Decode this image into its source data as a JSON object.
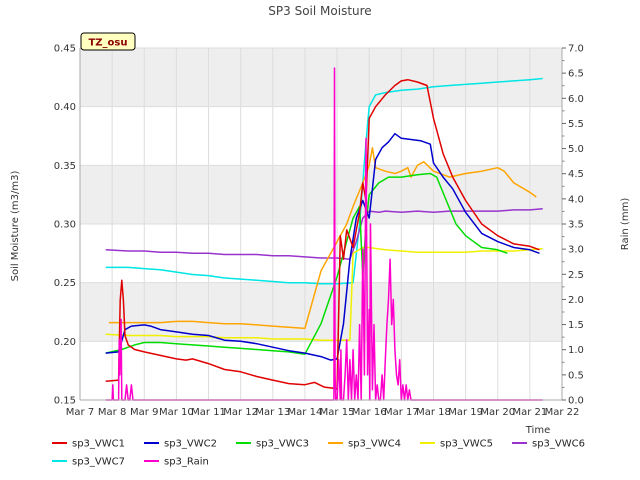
{
  "chart_data": {
    "type": "line",
    "title": "SP3 Soil Moisture",
    "annotation": "TZ_osu",
    "xlabel": "Time",
    "ylabel": "Soil Moisture (m3/m3)",
    "y2label": "Rain (mm)",
    "xlim": [
      7,
      22
    ],
    "ylim": [
      0.15,
      0.45
    ],
    "y2lim": [
      0,
      7
    ],
    "x_ticks": [
      7,
      8,
      9,
      10,
      11,
      12,
      13,
      14,
      15,
      16,
      17,
      18,
      19,
      20,
      21,
      22
    ],
    "x_tick_labels": [
      "Mar 7",
      "Mar 8",
      "Mar 9",
      "Mar 10",
      "Mar 11",
      "Mar 12",
      "Mar 13",
      "Mar 14",
      "Mar 15",
      "Mar 16",
      "Mar 17",
      "Mar 18",
      "Mar 19",
      "Mar 20",
      "Mar 21",
      "Mar 22"
    ],
    "y_ticks": [
      0.15,
      0.2,
      0.25,
      0.3,
      0.35,
      0.4,
      0.45
    ],
    "y_tick_labels": [
      "0.15",
      "0.20",
      "0.25",
      "0.30",
      "0.35",
      "0.40",
      "0.45"
    ],
    "y2_ticks": [
      0,
      0.5,
      1,
      1.5,
      2,
      2.5,
      3,
      3.5,
      4,
      4.5,
      5,
      5.5,
      6,
      6.5,
      7
    ],
    "y2_tick_labels": [
      "0.0",
      "0.5",
      "1.0",
      "1.5",
      "2.0",
      "2.5",
      "3.0",
      "3.5",
      "4.0",
      "4.5",
      "5.0",
      "5.5",
      "6.0",
      "6.5",
      "7.0"
    ],
    "grid": true,
    "legend_position": "bottom",
    "series": [
      {
        "name": "sp3_VWC1",
        "color": "#e00000",
        "axis": "left",
        "x": [
          7.8,
          8.2,
          8.25,
          8.3,
          8.35,
          8.4,
          8.5,
          8.7,
          9.0,
          9.5,
          10.0,
          10.3,
          10.5,
          11.0,
          11.5,
          12.0,
          12.5,
          13.0,
          13.5,
          14.0,
          14.3,
          14.6,
          14.9,
          15.0,
          15.1,
          15.2,
          15.3,
          15.5,
          15.7,
          15.8,
          15.9,
          16.0,
          16.2,
          16.5,
          16.8,
          17.0,
          17.2,
          17.5,
          17.8,
          18.0,
          18.3,
          18.6,
          19.0,
          19.5,
          20.0,
          20.5,
          21.0,
          21.3
        ],
        "y": [
          0.166,
          0.167,
          0.235,
          0.252,
          0.235,
          0.205,
          0.197,
          0.193,
          0.191,
          0.188,
          0.185,
          0.184,
          0.185,
          0.181,
          0.176,
          0.174,
          0.17,
          0.167,
          0.164,
          0.163,
          0.165,
          0.161,
          0.16,
          0.159,
          0.29,
          0.27,
          0.295,
          0.28,
          0.31,
          0.335,
          0.32,
          0.39,
          0.4,
          0.41,
          0.418,
          0.422,
          0.423,
          0.421,
          0.418,
          0.39,
          0.36,
          0.34,
          0.32,
          0.3,
          0.29,
          0.283,
          0.281,
          0.278
        ]
      },
      {
        "name": "sp3_VWC2",
        "color": "#0000cc",
        "axis": "left",
        "x": [
          7.8,
          8.2,
          8.4,
          8.6,
          9.0,
          9.2,
          9.5,
          10.0,
          10.5,
          11.0,
          11.5,
          12.0,
          12.5,
          13.0,
          13.5,
          14.0,
          14.5,
          14.8,
          15.0,
          15.2,
          15.4,
          15.6,
          15.8,
          16.0,
          16.2,
          16.4,
          16.6,
          16.8,
          17.0,
          17.3,
          17.6,
          17.9,
          18.0,
          18.3,
          18.6,
          19.0,
          19.5,
          20.0,
          20.5,
          21.0,
          21.3
        ],
        "y": [
          0.19,
          0.191,
          0.21,
          0.213,
          0.214,
          0.213,
          0.21,
          0.208,
          0.206,
          0.205,
          0.201,
          0.2,
          0.198,
          0.195,
          0.192,
          0.19,
          0.187,
          0.184,
          0.185,
          0.215,
          0.27,
          0.305,
          0.32,
          0.305,
          0.355,
          0.365,
          0.37,
          0.377,
          0.373,
          0.372,
          0.371,
          0.368,
          0.352,
          0.34,
          0.33,
          0.31,
          0.292,
          0.285,
          0.28,
          0.278,
          0.275
        ]
      },
      {
        "name": "sp3_VWC3",
        "color": "#00dd00",
        "axis": "left",
        "x": [
          7.8,
          8.3,
          8.7,
          9.0,
          9.5,
          10.0,
          10.5,
          11.0,
          11.5,
          12.0,
          12.5,
          13.0,
          13.5,
          14.0,
          14.5,
          15.0,
          15.3,
          15.5,
          15.7,
          15.8,
          15.9,
          16.0,
          16.3,
          16.6,
          17.0,
          17.5,
          17.9,
          18.1,
          18.4,
          18.7,
          19.0,
          19.5,
          20.0,
          20.3
        ],
        "y": [
          0.19,
          0.193,
          0.197,
          0.199,
          0.199,
          0.198,
          0.197,
          0.196,
          0.195,
          0.194,
          0.193,
          0.192,
          0.191,
          0.189,
          0.215,
          0.255,
          0.285,
          0.305,
          0.315,
          0.255,
          0.3,
          0.325,
          0.335,
          0.34,
          0.34,
          0.342,
          0.343,
          0.34,
          0.32,
          0.3,
          0.29,
          0.28,
          0.278,
          0.275
        ]
      },
      {
        "name": "sp3_VWC4",
        "color": "#ffa500",
        "axis": "left",
        "x": [
          7.9,
          8.3,
          8.7,
          9.0,
          9.5,
          10.0,
          10.5,
          11.0,
          11.5,
          12.0,
          12.5,
          13.0,
          13.5,
          14.0,
          14.5,
          15.0,
          15.3,
          15.5,
          15.8,
          16.0,
          16.1,
          16.2,
          16.5,
          16.8,
          17.0,
          17.2,
          17.3,
          17.5,
          17.7,
          18.0,
          18.5,
          19.0,
          19.5,
          20.0,
          20.2,
          20.5,
          21.0,
          21.2
        ],
        "y": [
          0.216,
          0.216,
          0.216,
          0.216,
          0.216,
          0.217,
          0.217,
          0.216,
          0.215,
          0.215,
          0.214,
          0.213,
          0.212,
          0.211,
          0.26,
          0.285,
          0.3,
          0.315,
          0.335,
          0.35,
          0.365,
          0.348,
          0.345,
          0.343,
          0.345,
          0.348,
          0.34,
          0.35,
          0.353,
          0.345,
          0.34,
          0.343,
          0.345,
          0.348,
          0.345,
          0.335,
          0.327,
          0.323
        ]
      },
      {
        "name": "sp3_VWC5",
        "color": "#f0f000",
        "axis": "left",
        "x": [
          7.8,
          8.5,
          9.0,
          9.5,
          10.0,
          10.5,
          11.0,
          11.5,
          12.0,
          12.5,
          13.0,
          13.5,
          14.0,
          14.5,
          15.0,
          15.4,
          15.5,
          15.8,
          16.0,
          16.5,
          17.0,
          17.5,
          18.0,
          18.5,
          19.0,
          19.5,
          20.0,
          20.5,
          21.0,
          21.4
        ],
        "y": [
          0.206,
          0.205,
          0.205,
          0.205,
          0.204,
          0.204,
          0.204,
          0.203,
          0.203,
          0.203,
          0.202,
          0.202,
          0.202,
          0.201,
          0.201,
          0.201,
          0.275,
          0.28,
          0.28,
          0.278,
          0.277,
          0.276,
          0.276,
          0.276,
          0.276,
          0.277,
          0.277,
          0.277,
          0.278,
          0.279
        ]
      },
      {
        "name": "sp3_VWC6",
        "color": "#9933cc",
        "axis": "left",
        "x": [
          7.8,
          8.5,
          9.0,
          9.5,
          10.0,
          10.5,
          11.0,
          11.5,
          12.0,
          12.5,
          13.0,
          13.5,
          14.0,
          14.5,
          15.0,
          15.4,
          15.6,
          15.8,
          16.0,
          16.3,
          16.5,
          17.0,
          17.5,
          18.0,
          18.5,
          19.0,
          19.5,
          20.0,
          20.5,
          21.0,
          21.4
        ],
        "y": [
          0.278,
          0.277,
          0.277,
          0.276,
          0.276,
          0.275,
          0.275,
          0.274,
          0.274,
          0.274,
          0.273,
          0.273,
          0.272,
          0.271,
          0.271,
          0.27,
          0.285,
          0.305,
          0.311,
          0.31,
          0.311,
          0.31,
          0.311,
          0.31,
          0.311,
          0.311,
          0.311,
          0.311,
          0.312,
          0.312,
          0.313
        ]
      },
      {
        "name": "sp3_VWC7",
        "color": "#00e5e5",
        "axis": "left",
        "x": [
          7.8,
          8.5,
          9.0,
          9.5,
          10.0,
          10.5,
          11.0,
          11.5,
          12.0,
          12.5,
          13.0,
          13.5,
          14.0,
          14.5,
          15.0,
          15.5,
          15.7,
          15.9,
          16.0,
          16.2,
          16.5,
          17.0,
          17.5,
          18.0,
          18.5,
          19.0,
          19.5,
          20.0,
          20.5,
          21.0,
          21.4
        ],
        "y": [
          0.263,
          0.263,
          0.262,
          0.261,
          0.259,
          0.257,
          0.256,
          0.254,
          0.253,
          0.252,
          0.251,
          0.25,
          0.25,
          0.249,
          0.249,
          0.25,
          0.3,
          0.37,
          0.4,
          0.41,
          0.412,
          0.414,
          0.415,
          0.417,
          0.418,
          0.419,
          0.42,
          0.421,
          0.422,
          0.423,
          0.424
        ]
      },
      {
        "name": "sp3_Rain",
        "color": "#ff00cc",
        "axis": "right",
        "x": [
          7.8,
          8.0,
          8.02,
          8.04,
          8.06,
          8.2,
          8.22,
          8.24,
          8.28,
          8.3,
          8.4,
          8.45,
          8.5,
          8.55,
          8.6,
          8.65,
          14.8,
          14.9,
          14.92,
          14.94,
          14.96,
          15.0,
          15.05,
          15.1,
          15.12,
          15.14,
          15.2,
          15.25,
          15.3,
          15.35,
          15.4,
          15.45,
          15.5,
          15.55,
          15.6,
          15.65,
          15.7,
          15.75,
          15.8,
          15.85,
          15.9,
          15.95,
          16.0,
          16.02,
          16.04,
          16.1,
          16.15,
          16.2,
          16.25,
          16.3,
          16.35,
          16.4,
          16.45,
          16.5,
          16.55,
          16.6,
          16.65,
          16.7,
          16.75,
          16.8,
          16.85,
          16.9,
          16.95,
          17.0,
          17.05,
          17.1,
          17.15,
          17.2,
          17.25,
          17.3,
          17.35,
          17.4,
          21.4
        ],
        "y": [
          0,
          0,
          0.3,
          0,
          0,
          0,
          1.2,
          0.5,
          1.6,
          0,
          0,
          0.3,
          0,
          0,
          0.3,
          0,
          0,
          0,
          6.6,
          0.5,
          0,
          0,
          0.8,
          0,
          1.0,
          0,
          0,
          0.5,
          1.2,
          0,
          0.8,
          0,
          1.0,
          0,
          0.5,
          0,
          1.5,
          0,
          3.0,
          0.5,
          5.2,
          0.5,
          1.8,
          0,
          3.5,
          0.2,
          1.5,
          0,
          0.3,
          0,
          0,
          0.5,
          0,
          0.8,
          1.5,
          2.0,
          2.8,
          1.5,
          2.0,
          1.0,
          0.5,
          0.3,
          0.8,
          0,
          0.3,
          0,
          0.3,
          0,
          0.2,
          0,
          0,
          0,
          0
        ]
      }
    ]
  }
}
